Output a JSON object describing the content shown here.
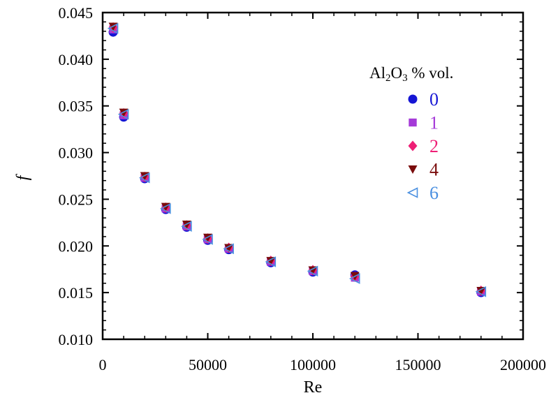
{
  "chart_data": {
    "type": "scatter",
    "xlabel": "Re",
    "ylabel": "f",
    "xlim": [
      0,
      200000
    ],
    "ylim": [
      0.01,
      0.045
    ],
    "x_ticks": [
      "0",
      "50000",
      "100000",
      "150000",
      "200000"
    ],
    "y_ticks": [
      "0.010",
      "0.015",
      "0.020",
      "0.025",
      "0.030",
      "0.035",
      "0.040",
      "0.045"
    ],
    "legend": {
      "title_main": "Al",
      "title_sub1": "2",
      "title_mid": "O",
      "title_sub2": "3",
      "title_tail": " % vol.",
      "placement": "upper-right inside plot"
    },
    "x": [
      5000,
      10000,
      20000,
      30000,
      40000,
      50000,
      60000,
      80000,
      100000,
      120000,
      180000
    ],
    "series": [
      {
        "name": "0",
        "color": "#1515d4",
        "marker": "circle",
        "values": [
          0.0429,
          0.0338,
          0.0272,
          0.0239,
          0.022,
          0.0206,
          0.0196,
          0.0182,
          0.0172,
          0.0169,
          0.015
        ]
      },
      {
        "name": "1",
        "color": "#a53ad8",
        "marker": "square",
        "values": [
          0.0432,
          0.034,
          0.0273,
          0.024,
          0.0221,
          0.0207,
          0.0197,
          0.0183,
          0.0173,
          0.0166,
          0.0151
        ]
      },
      {
        "name": "2",
        "color": "#ee1f76",
        "marker": "diamond",
        "values": [
          0.0434,
          0.0342,
          0.0274,
          0.0241,
          0.0222,
          0.0208,
          0.0198,
          0.0184,
          0.0174,
          0.0167,
          0.0152
        ]
      },
      {
        "name": "4",
        "color": "#7a0c0c",
        "marker": "triangle-down",
        "values": [
          0.0435,
          0.0343,
          0.0275,
          0.0242,
          0.0223,
          0.0209,
          0.0198,
          0.0184,
          0.0174,
          0.0168,
          0.0152
        ]
      },
      {
        "name": "6",
        "color": "#4a8fe0",
        "marker": "triangle-left",
        "values": [
          0.0433,
          0.0341,
          0.0273,
          0.024,
          0.0221,
          0.0207,
          0.0197,
          0.0183,
          0.0173,
          0.0165,
          0.0151
        ]
      }
    ]
  }
}
